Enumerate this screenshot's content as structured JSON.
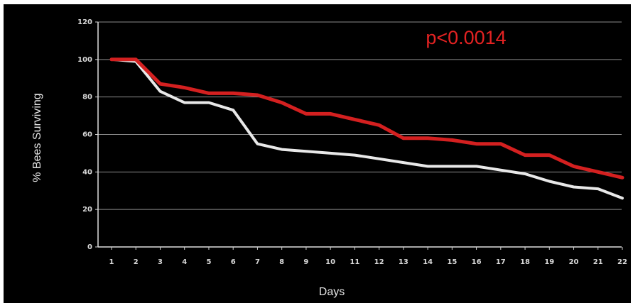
{
  "chart_data": {
    "type": "line",
    "title": "",
    "xlabel": "Days",
    "ylabel": "% Bees Surviving",
    "annotation": "p<0.0014",
    "x": [
      1,
      2,
      3,
      4,
      5,
      6,
      7,
      8,
      9,
      10,
      11,
      12,
      13,
      14,
      15,
      16,
      17,
      18,
      19,
      20,
      21,
      22
    ],
    "xlim": [
      1,
      22
    ],
    "ylim": [
      0,
      120
    ],
    "yticks": [
      0,
      20,
      40,
      60,
      80,
      100,
      120
    ],
    "grid": true,
    "legend": "none",
    "series": [
      {
        "color": "#d42020",
        "values": [
          100,
          100,
          87,
          85,
          82,
          82,
          81,
          77,
          71,
          71,
          68,
          65,
          58,
          58,
          57,
          55,
          55,
          49,
          49,
          43,
          40,
          37
        ]
      },
      {
        "color": "#e8e8e8",
        "values": [
          100,
          99,
          83,
          77,
          77,
          73,
          55,
          52,
          51,
          50,
          49,
          47,
          45,
          43,
          43,
          43,
          41,
          39,
          35,
          32,
          31,
          26
        ]
      }
    ]
  }
}
